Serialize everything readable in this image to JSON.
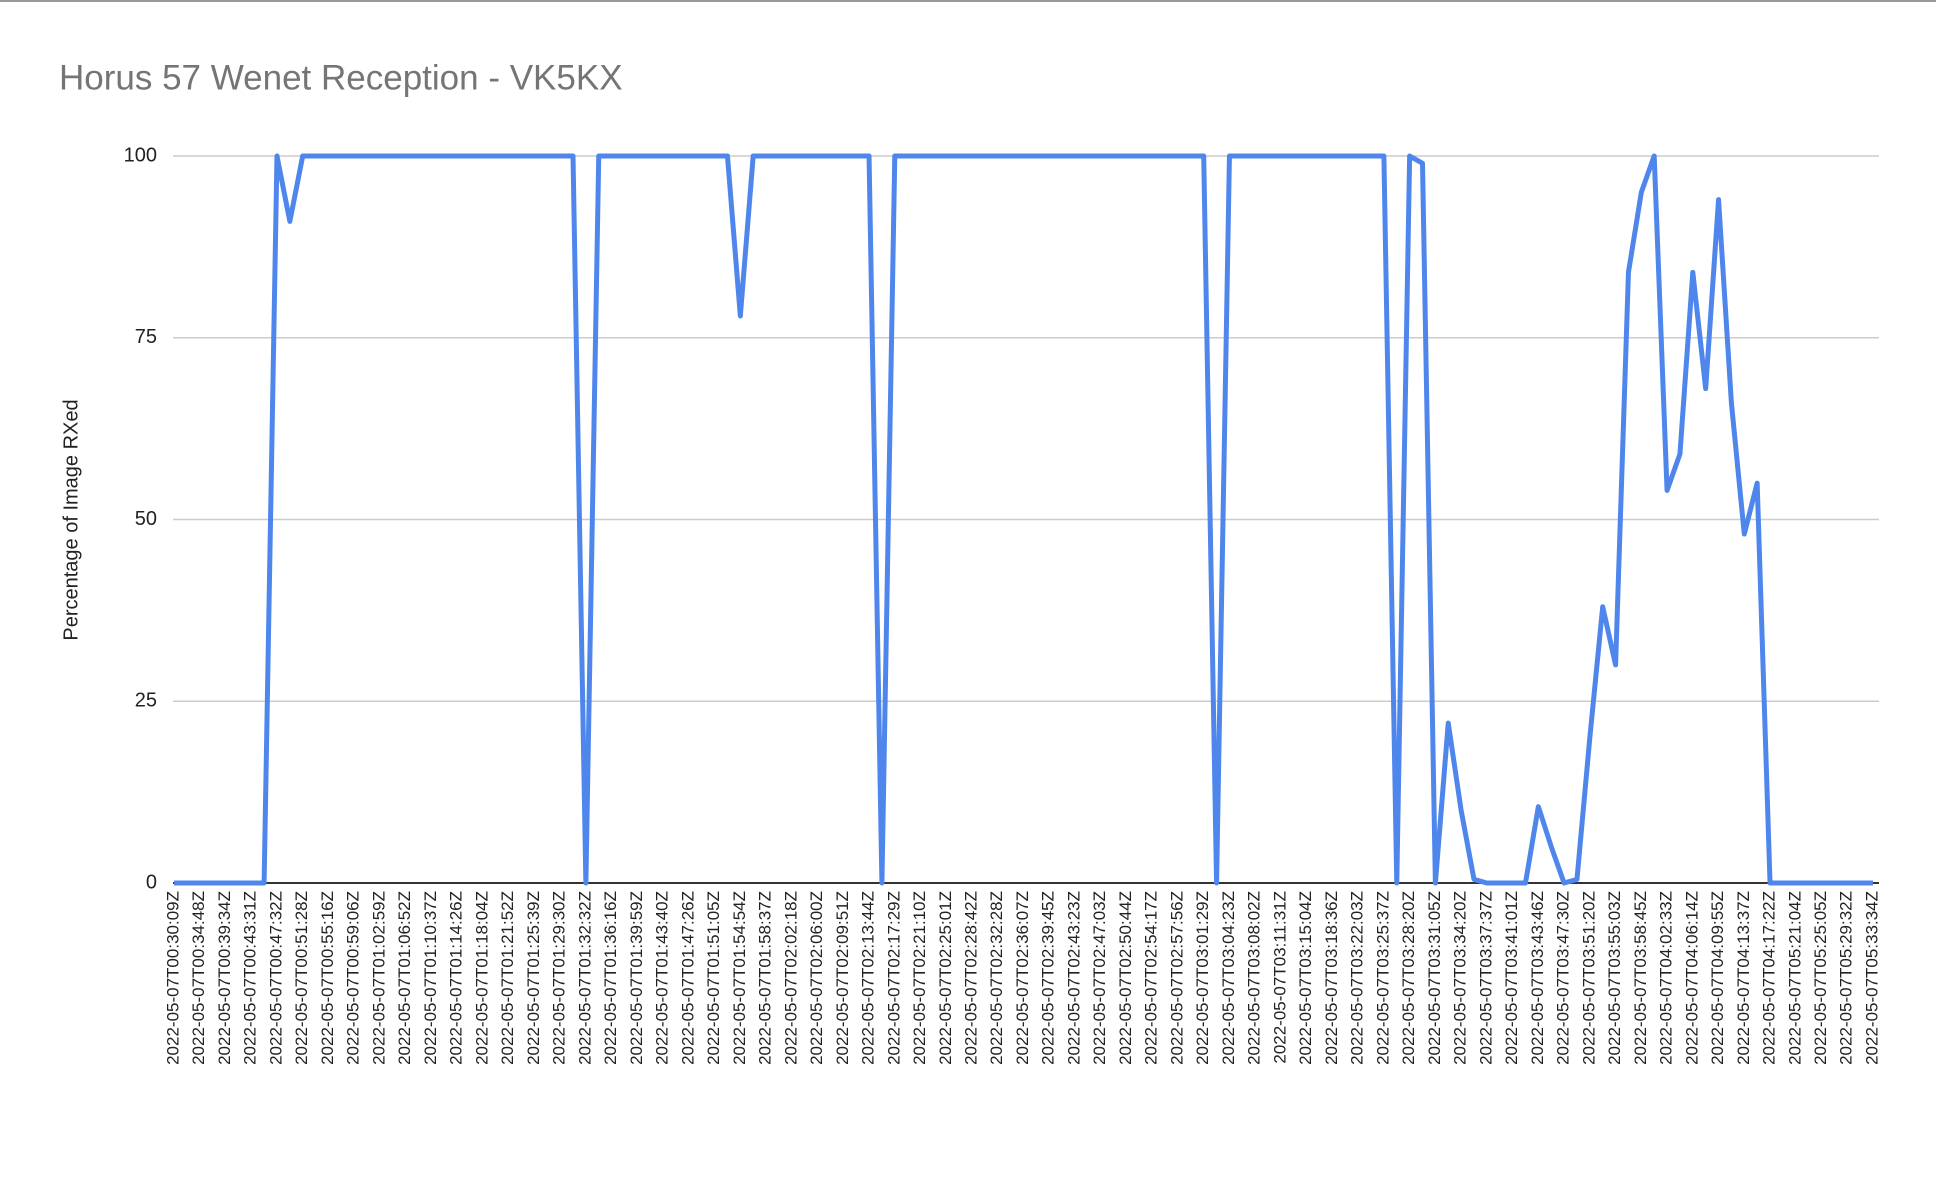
{
  "chart_data": {
    "type": "line",
    "title": "Horus 57 Wenet Reception - VK5KX",
    "y_label": "Percentage of Image RXed",
    "categories": [
      "2022-05-07T00:30:09Z",
      null,
      "2022-05-07T00:34:48Z",
      null,
      "2022-05-07T00:39:34Z",
      null,
      "2022-05-07T00:43:31Z",
      null,
      "2022-05-07T00:47:32Z",
      null,
      "2022-05-07T00:51:28Z",
      null,
      "2022-05-07T00:55:16Z",
      null,
      "2022-05-07T00:59:06Z",
      null,
      "2022-05-07T01:02:59Z",
      null,
      "2022-05-07T01:06:52Z",
      null,
      "2022-05-07T01:10:37Z",
      null,
      "2022-05-07T01:14:26Z",
      null,
      "2022-05-07T01:18:04Z",
      null,
      "2022-05-07T01:21:52Z",
      null,
      "2022-05-07T01:25:39Z",
      null,
      "2022-05-07T01:29:30Z",
      null,
      "2022-05-07T01:32:32Z",
      null,
      "2022-05-07T01:36:16Z",
      null,
      "2022-05-07T01:39:59Z",
      null,
      "2022-05-07T01:43:40Z",
      null,
      "2022-05-07T01:47:26Z",
      null,
      "2022-05-07T01:51:05Z",
      null,
      "2022-05-07T01:54:54Z",
      null,
      "2022-05-07T01:58:37Z",
      null,
      "2022-05-07T02:02:18Z",
      null,
      "2022-05-07T02:06:00Z",
      null,
      "2022-05-07T02:09:51Z",
      null,
      "2022-05-07T02:13:44Z",
      null,
      "2022-05-07T02:17:29Z",
      null,
      "2022-05-07T02:21:10Z",
      null,
      "2022-05-07T02:25:01Z",
      null,
      "2022-05-07T02:28:42Z",
      null,
      "2022-05-07T02:32:28Z",
      null,
      "2022-05-07T02:36:07Z",
      null,
      "2022-05-07T02:39:45Z",
      null,
      "2022-05-07T02:43:23Z",
      null,
      "2022-05-07T02:47:03Z",
      null,
      "2022-05-07T02:50:44Z",
      null,
      "2022-05-07T02:54:17Z",
      null,
      "2022-05-07T02:57:56Z",
      null,
      "2022-05-07T03:01:29Z",
      null,
      "2022-05-07T03:04:23Z",
      null,
      "2022-05-07T03:08:02Z",
      null,
      "2022-05-07T03:11:31Z",
      null,
      "2022-05-07T03:15:04Z",
      null,
      "2022-05-07T03:18:36Z",
      null,
      "2022-05-07T03:22:03Z",
      null,
      "2022-05-07T03:25:37Z",
      null,
      "2022-05-07T03:28:20Z",
      null,
      "2022-05-07T03:31:05Z",
      null,
      "2022-05-07T03:34:20Z",
      null,
      "2022-05-07T03:37:37Z",
      null,
      "2022-05-07T03:41:01Z",
      null,
      "2022-05-07T03:43:46Z",
      null,
      "2022-05-07T03:47:30Z",
      null,
      "2022-05-07T03:51:20Z",
      null,
      "2022-05-07T03:55:03Z",
      null,
      "2022-05-07T03:58:45Z",
      null,
      "2022-05-07T04:02:33Z",
      null,
      "2022-05-07T04:06:14Z",
      null,
      "2022-05-07T04:09:55Z",
      null,
      "2022-05-07T04:13:37Z",
      null,
      "2022-05-07T04:17:22Z",
      null,
      "2022-05-07T05:21:04Z",
      null,
      "2022-05-07T05:25:05Z",
      null,
      "2022-05-07T05:29:32Z",
      null,
      "2022-05-07T05:33:34Z"
    ],
    "values": [
      0,
      0,
      0,
      0,
      0,
      0,
      0,
      0,
      100,
      91,
      100,
      100,
      100,
      100,
      100,
      100,
      100,
      100,
      100,
      100,
      100,
      100,
      100,
      100,
      100,
      100,
      100,
      100,
      100,
      100,
      100,
      100,
      0,
      100,
      100,
      100,
      100,
      100,
      100,
      100,
      100,
      100,
      100,
      100,
      78,
      100,
      100,
      100,
      100,
      100,
      100,
      100,
      100,
      100,
      100,
      0,
      100,
      100,
      100,
      100,
      100,
      100,
      100,
      100,
      100,
      100,
      100,
      100,
      100,
      100,
      100,
      100,
      100,
      100,
      100,
      100,
      100,
      100,
      100,
      100,
      100,
      0,
      100,
      100,
      100,
      100,
      100,
      100,
      100,
      100,
      100,
      100,
      100,
      100,
      100,
      0,
      100,
      99,
      0,
      22,
      10,
      0.5,
      0,
      0,
      0,
      0,
      10.5,
      5,
      0,
      0.5,
      20,
      38,
      30,
      84,
      95,
      100,
      54,
      59,
      84,
      68,
      94,
      66,
      48,
      55,
      0,
      0,
      0,
      0,
      0,
      0,
      0,
      0,
      0
    ],
    "color": "#4f86ec",
    "ylim": [
      0,
      100
    ],
    "yticks": [
      0,
      25,
      50,
      75,
      100
    ],
    "grid": true
  }
}
